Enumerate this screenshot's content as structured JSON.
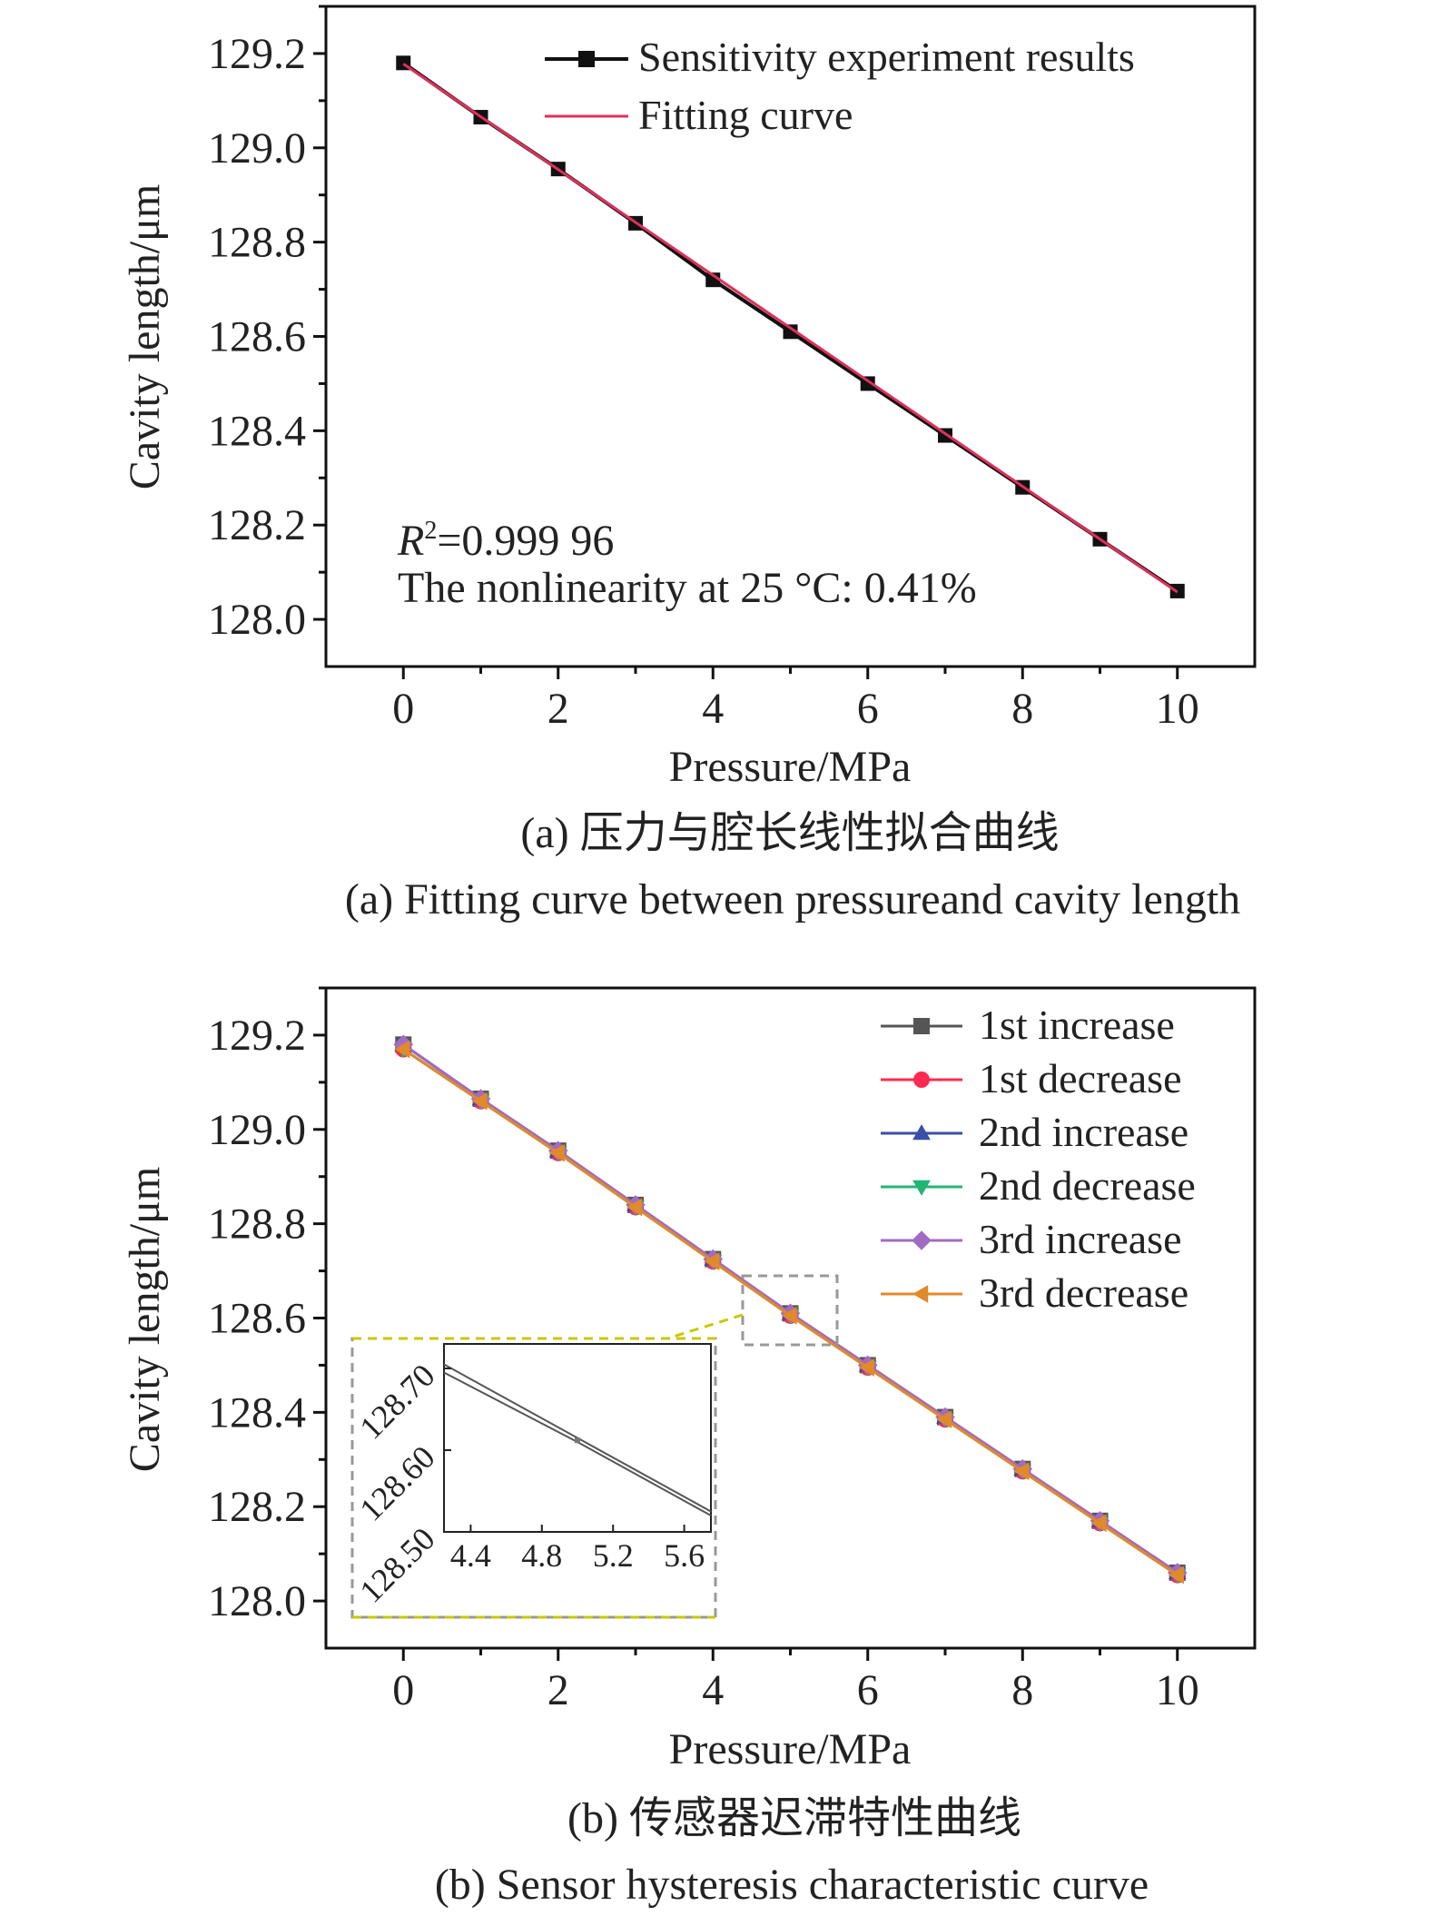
{
  "chart_data": [
    {
      "type": "line",
      "xlabel": "Pressure/MPa",
      "ylabel": "Cavity length/μm",
      "xlim": [
        -1,
        11
      ],
      "ylim": [
        127.9,
        129.3
      ],
      "xticks": [
        "0",
        "2",
        "4",
        "6",
        "8",
        "10"
      ],
      "yticks": [
        "128.0",
        "128.2",
        "128.4",
        "128.6",
        "128.8",
        "129.0",
        "129.2"
      ],
      "x": [
        0,
        1,
        2,
        3,
        4,
        5,
        6,
        7,
        8,
        9,
        10
      ],
      "series": [
        {
          "name": "Sensitivity experiment results",
          "color": "#111111",
          "marker": "square",
          "values": [
            129.18,
            129.065,
            128.955,
            128.84,
            128.72,
            128.61,
            128.5,
            128.39,
            128.28,
            128.17,
            128.06
          ]
        },
        {
          "name": "Fitting curve",
          "color": "#e0305a",
          "marker": "none",
          "values": [
            129.178,
            129.066,
            128.954,
            128.842,
            128.73,
            128.618,
            128.506,
            128.394,
            128.282,
            128.17,
            128.058
          ]
        }
      ],
      "annotations": {
        "r2_label": "R",
        "r2_sup": "2",
        "r2_value": "=0.999 96",
        "nonlinearity": "The nonlinearity at 25 °C: 0.41%"
      },
      "legend": "top-right",
      "caption_cn": "(a) 压力与腔长线性拟合曲线",
      "caption_en": "(a) Fitting curve between pressureand cavity length"
    },
    {
      "type": "line",
      "xlabel": "Pressure/MPa",
      "ylabel": "Cavity length/μm",
      "xlim": [
        -1,
        11
      ],
      "ylim": [
        127.9,
        129.3
      ],
      "xticks": [
        "0",
        "2",
        "4",
        "6",
        "8",
        "10"
      ],
      "yticks": [
        "128.0",
        "128.2",
        "128.4",
        "128.6",
        "128.8",
        "129.0",
        "129.2"
      ],
      "x": [
        0,
        1,
        2,
        3,
        4,
        5,
        6,
        7,
        8,
        9,
        10
      ],
      "series": [
        {
          "name": "1st increase",
          "color": "#555555",
          "marker": "square",
          "values": [
            129.18,
            129.065,
            128.955,
            128.84,
            128.725,
            128.61,
            128.5,
            128.39,
            128.28,
            128.17,
            128.06
          ]
        },
        {
          "name": "1st decrease",
          "color": "#ff2a4f",
          "marker": "circle",
          "values": [
            129.17,
            129.06,
            128.95,
            128.835,
            128.72,
            128.605,
            128.495,
            128.385,
            128.275,
            128.165,
            128.055
          ]
        },
        {
          "name": "2nd increase",
          "color": "#3b4ea8",
          "marker": "triangle-up",
          "values": [
            129.18,
            129.065,
            128.955,
            128.84,
            128.725,
            128.61,
            128.5,
            128.39,
            128.28,
            128.17,
            128.06
          ]
        },
        {
          "name": "2nd decrease",
          "color": "#22b573",
          "marker": "triangle-down",
          "values": [
            129.17,
            129.06,
            128.95,
            128.835,
            128.72,
            128.605,
            128.495,
            128.385,
            128.275,
            128.165,
            128.055
          ]
        },
        {
          "name": "3rd increase",
          "color": "#a26bc2",
          "marker": "diamond",
          "values": [
            129.18,
            129.065,
            128.955,
            128.84,
            128.725,
            128.61,
            128.5,
            128.39,
            128.28,
            128.17,
            128.06
          ]
        },
        {
          "name": "3rd decrease",
          "color": "#e08a2a",
          "marker": "triangle-left",
          "values": [
            129.17,
            129.06,
            128.95,
            128.835,
            128.72,
            128.605,
            128.495,
            128.385,
            128.275,
            128.165,
            128.055
          ]
        }
      ],
      "inset": {
        "xlim": [
          4.25,
          5.75
        ],
        "ylim": [
          128.5,
          128.73
        ],
        "xticks": [
          "4.4",
          "4.8",
          "5.2",
          "5.6"
        ],
        "yticks": [
          "128.50",
          "128.60",
          "128.70"
        ],
        "lines": [
          {
            "x": [
              4.25,
              5,
              5.75
            ],
            "y": [
              128.705,
              128.615,
              128.525
            ]
          },
          {
            "x": [
              4.25,
              5,
              5.75
            ],
            "y": [
              128.695,
              128.61,
              128.52
            ]
          }
        ]
      },
      "legend": "top-right",
      "caption_cn": "(b) 传感器迟滞特性曲线",
      "caption_en": "(b) Sensor hysteresis characteristic curve"
    }
  ]
}
